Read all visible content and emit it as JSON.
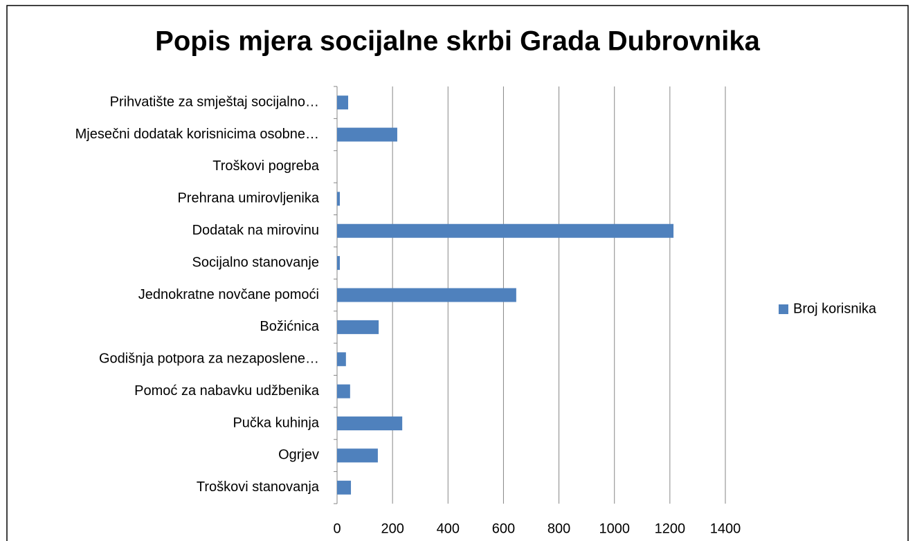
{
  "chart_data": {
    "type": "bar",
    "orientation": "horizontal",
    "title": "Popis mjera socijalne skrbi Grada Dubrovnika",
    "categories": [
      "Prihvatište za smještaj socijalno…",
      "Mjesečni dodatak korisnicima osobne…",
      "Troškovi pogreba",
      "Prehrana umirovljenika",
      "Dodatak na mirovinu",
      "Socijalno stanovanje",
      "Jednokratne novčane pomoći",
      "Božićnica",
      "Godišnja potpora za nezaposlene…",
      "Pomoć za nabavku udžbenika",
      "Pučka kuhinja",
      "Ogrjev",
      "Troškovi stanovanja"
    ],
    "series": [
      {
        "name": "Broj korisnika",
        "color": "#4f81bd",
        "values": [
          40,
          217,
          0,
          10,
          1213,
          10,
          646,
          150,
          32,
          47,
          235,
          147,
          50
        ]
      }
    ],
    "xlim": [
      0,
      1400
    ],
    "xticks": [
      0,
      200,
      400,
      600,
      800,
      1000,
      1200,
      1400
    ],
    "grid": true,
    "legend": "right"
  }
}
